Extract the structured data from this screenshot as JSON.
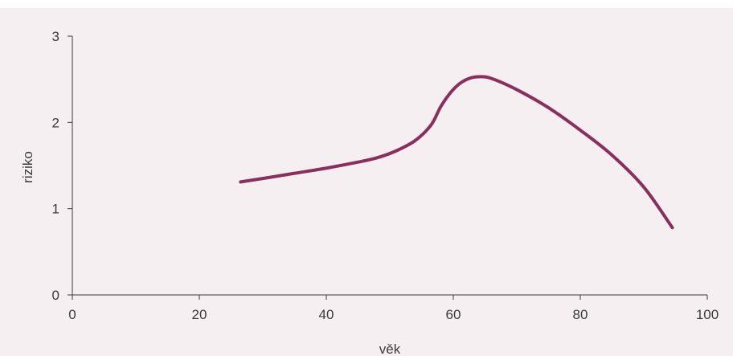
{
  "chart_data": {
    "type": "line",
    "title": "",
    "xlabel": "věk",
    "ylabel": "riziko",
    "xlim": [
      0,
      100
    ],
    "ylim": [
      0,
      3
    ],
    "x_ticks": [
      0,
      20,
      40,
      60,
      80,
      100
    ],
    "y_ticks": [
      0,
      1,
      2,
      3
    ],
    "grid": false,
    "series": [
      {
        "color": "#8a2e5c",
        "points": [
          [
            26.5,
            1.31
          ],
          [
            30,
            1.35
          ],
          [
            35,
            1.41
          ],
          [
            40,
            1.47
          ],
          [
            45,
            1.54
          ],
          [
            48,
            1.59
          ],
          [
            51,
            1.67
          ],
          [
            54,
            1.79
          ],
          [
            56.5,
            1.97
          ],
          [
            58,
            2.18
          ],
          [
            59.5,
            2.34
          ],
          [
            61,
            2.45
          ],
          [
            62.5,
            2.51
          ],
          [
            64,
            2.53
          ],
          [
            66,
            2.51
          ],
          [
            70,
            2.38
          ],
          [
            75,
            2.17
          ],
          [
            80,
            1.91
          ],
          [
            85,
            1.62
          ],
          [
            90,
            1.25
          ],
          [
            94.5,
            0.78
          ]
        ]
      }
    ],
    "colors": {
      "background": "#f5eff1",
      "axis": "#3a3a3a",
      "line": "#8a2e5c"
    }
  }
}
